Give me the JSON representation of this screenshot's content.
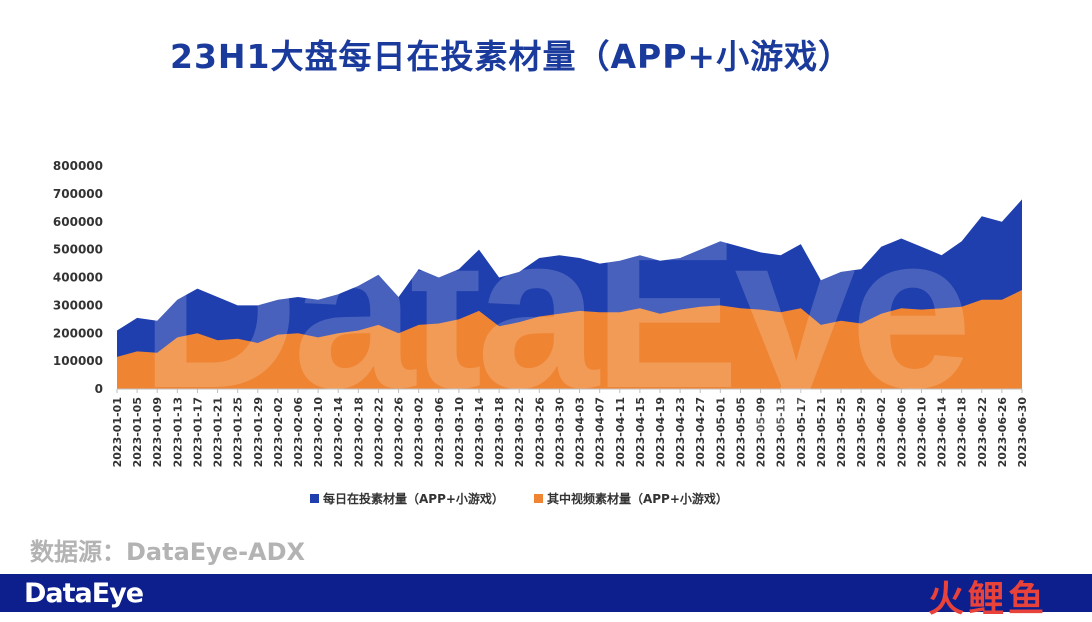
{
  "chart_data": {
    "type": "area",
    "title": "23H1大盘每日在投素材量（APP+小游戏）",
    "ylim": [
      0,
      800000
    ],
    "yticks": [
      "800000",
      "700000",
      "600000",
      "500000",
      "400000",
      "300000",
      "200000",
      "100000",
      "0"
    ],
    "x": [
      "2023-01-01",
      "2023-01-05",
      "2023-01-09",
      "2023-01-13",
      "2023-01-17",
      "2023-01-21",
      "2023-01-25",
      "2023-01-29",
      "2023-02-02",
      "2023-02-06",
      "2023-02-10",
      "2023-02-14",
      "2023-02-18",
      "2023-02-22",
      "2023-02-26",
      "2023-03-02",
      "2023-03-06",
      "2023-03-10",
      "2023-03-14",
      "2023-03-18",
      "2023-03-22",
      "2023-03-26",
      "2023-03-30",
      "2023-04-03",
      "2023-04-07",
      "2023-04-11",
      "2023-04-15",
      "2023-04-19",
      "2023-04-23",
      "2023-04-27",
      "2023-05-01",
      "2023-05-05",
      "2023-05-09",
      "2023-05-13",
      "2023-05-17",
      "2023-05-21",
      "2023-05-25",
      "2023-05-29",
      "2023-06-02",
      "2023-06-06",
      "2023-06-10",
      "2023-06-14",
      "2023-06-18",
      "2023-06-22",
      "2023-06-26",
      "2023-06-30"
    ],
    "series": [
      {
        "name": "每日在投素材量（APP+小游戏）",
        "color": "#1f3fae",
        "values": [
          210000,
          255000,
          245000,
          320000,
          360000,
          330000,
          300000,
          300000,
          320000,
          330000,
          320000,
          340000,
          370000,
          410000,
          330000,
          430000,
          400000,
          430000,
          500000,
          400000,
          420000,
          470000,
          480000,
          470000,
          450000,
          460000,
          480000,
          460000,
          470000,
          500000,
          530000,
          510000,
          490000,
          480000,
          520000,
          390000,
          420000,
          430000,
          510000,
          540000,
          510000,
          480000,
          530000,
          620000,
          600000,
          680000
        ]
      },
      {
        "name": "其中视频素材量（APP+小游戏）",
        "color": "#ef8533",
        "values": [
          115000,
          135000,
          130000,
          185000,
          200000,
          175000,
          180000,
          165000,
          195000,
          200000,
          185000,
          200000,
          210000,
          230000,
          200000,
          230000,
          235000,
          250000,
          280000,
          225000,
          240000,
          260000,
          270000,
          280000,
          275000,
          275000,
          290000,
          270000,
          285000,
          295000,
          300000,
          290000,
          285000,
          275000,
          290000,
          230000,
          245000,
          235000,
          270000,
          290000,
          285000,
          290000,
          295000,
          320000,
          320000,
          355000
        ]
      }
    ]
  },
  "source_label": "数据源：DataEye-ADX",
  "footer_brand": "DataEye",
  "footer_brand2": "火鲤鱼",
  "watermark_text": "DataEye"
}
